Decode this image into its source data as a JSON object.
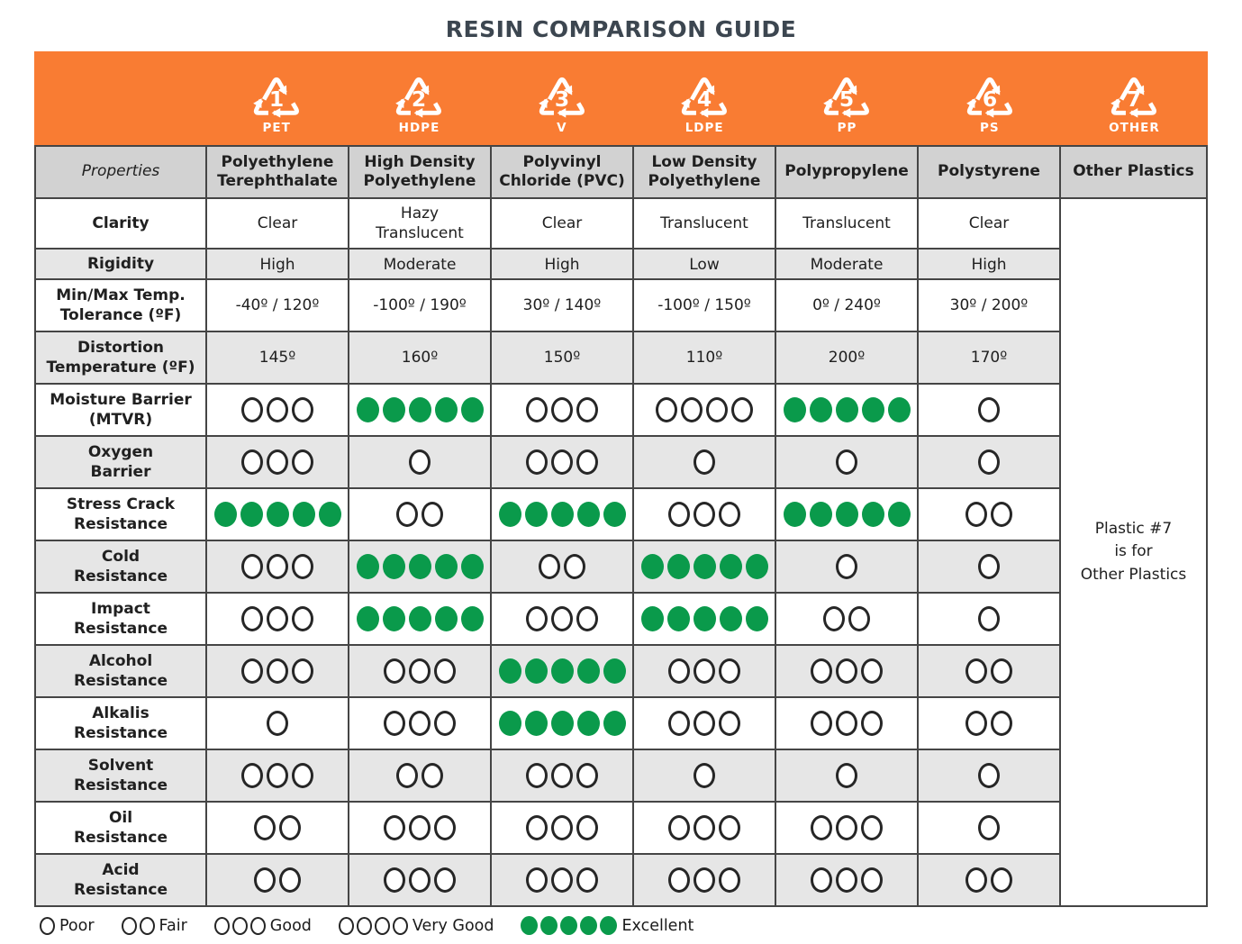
{
  "title": "RESIN COMPARISON GUIDE",
  "banner": {
    "codes": [
      {
        "number": "1",
        "label": "PET"
      },
      {
        "number": "2",
        "label": "HDPE"
      },
      {
        "number": "3",
        "label": "V"
      },
      {
        "number": "4",
        "label": "LDPE"
      },
      {
        "number": "5",
        "label": "PP"
      },
      {
        "number": "6",
        "label": "PS"
      },
      {
        "number": "7",
        "label": "OTHER"
      }
    ]
  },
  "table": {
    "properties_header": "Properties",
    "column_headers": [
      "Polyethylene Terephthalate",
      "High Density Polyethylene",
      "Polyvinyl Chloride (PVC)",
      "Low Density Polyethylene",
      "Polypropylene",
      "Polystyrene",
      "Other Plastics"
    ],
    "other_note": "Plastic #7\nis for\nOther Plastics",
    "rows": [
      {
        "property": "Clarity",
        "type": "text",
        "values": [
          "Clear",
          "Hazy\nTranslucent",
          "Clear",
          "Translucent",
          "Translucent",
          "Clear"
        ]
      },
      {
        "property": "Rigidity",
        "type": "text",
        "values": [
          "High",
          "Moderate",
          "High",
          "Low",
          "Moderate",
          "High"
        ]
      },
      {
        "property": "Min/Max Temp.\nTolerance (ºF)",
        "type": "text",
        "values": [
          "-40º / 120º",
          "-100º / 190º",
          "30º / 140º",
          "-100º / 150º",
          "0º / 240º",
          "30º / 200º"
        ]
      },
      {
        "property": "Distortion\nTemperature (ºF)",
        "type": "text",
        "values": [
          "145º",
          "160º",
          "150º",
          "110º",
          "200º",
          "170º"
        ]
      },
      {
        "property": "Moisture Barrier\n(MTVR)",
        "type": "rating",
        "values": [
          3,
          5,
          3,
          4,
          5,
          1
        ]
      },
      {
        "property": "Oxygen\nBarrier",
        "type": "rating",
        "values": [
          3,
          1,
          3,
          1,
          1,
          1
        ]
      },
      {
        "property": "Stress Crack\nResistance",
        "type": "rating",
        "values": [
          5,
          2,
          5,
          3,
          5,
          2
        ]
      },
      {
        "property": "Cold\nResistance",
        "type": "rating",
        "values": [
          3,
          5,
          2,
          5,
          1,
          1
        ]
      },
      {
        "property": "Impact\nResistance",
        "type": "rating",
        "values": [
          3,
          5,
          3,
          5,
          2,
          1
        ]
      },
      {
        "property": "Alcohol\nResistance",
        "type": "rating",
        "values": [
          3,
          3,
          5,
          3,
          3,
          2
        ]
      },
      {
        "property": "Alkalis\nResistance",
        "type": "rating",
        "values": [
          1,
          3,
          5,
          3,
          3,
          2
        ]
      },
      {
        "property": "Solvent\nResistance",
        "type": "rating",
        "values": [
          3,
          2,
          3,
          1,
          1,
          1
        ]
      },
      {
        "property": "Oil\nResistance",
        "type": "rating",
        "values": [
          2,
          3,
          3,
          3,
          3,
          1
        ]
      },
      {
        "property": "Acid\nResistance",
        "type": "rating",
        "values": [
          2,
          3,
          3,
          3,
          3,
          2
        ]
      }
    ],
    "rating_scale_max": 5,
    "excellent_value": 5
  },
  "legend": [
    {
      "dots": 1,
      "filled": false,
      "label": "Poor"
    },
    {
      "dots": 2,
      "filled": false,
      "label": "Fair"
    },
    {
      "dots": 3,
      "filled": false,
      "label": "Good"
    },
    {
      "dots": 4,
      "filled": false,
      "label": "Very Good"
    },
    {
      "dots": 5,
      "filled": true,
      "label": "Excellent"
    }
  ],
  "colors": {
    "banner_orange": "#F97C33",
    "excellent_green": "#0A9A4B",
    "header_gray": "#D2D2D2",
    "row_gray": "#E6E6E6",
    "border": "#454545",
    "title": "#3C4650"
  }
}
